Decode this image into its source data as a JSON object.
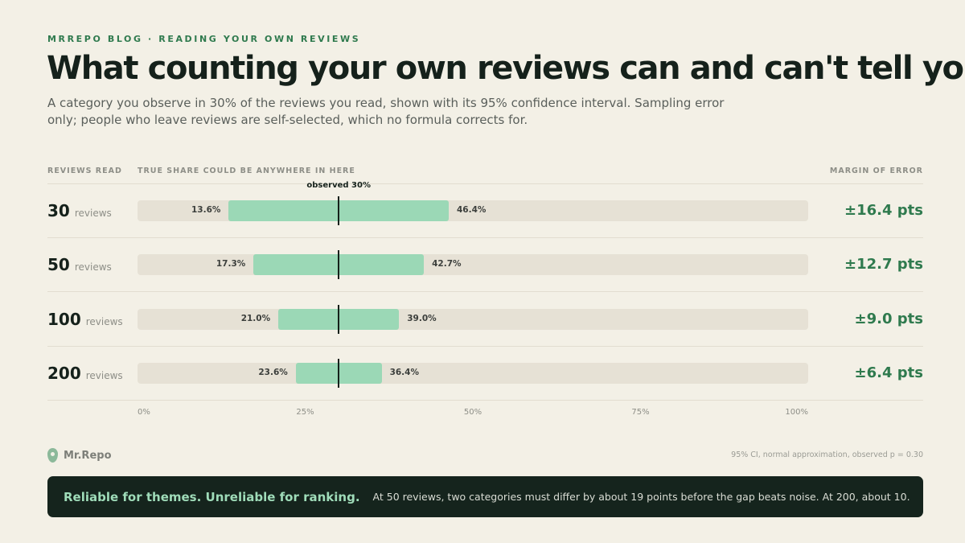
{
  "header": {
    "eyebrow": "MRREPO BLOG · READING YOUR OWN REVIEWS",
    "title": "What counting your own reviews can and can't tell you",
    "subtitle": "A category you observe in 30% of the reviews you read, shown with its 95% confidence interval. Sampling error only; people who leave reviews are self-selected, which no formula corrects for."
  },
  "columns": {
    "reviews_read": "REVIEWS READ",
    "range": "TRUE SHARE COULD BE ANYWHERE IN HERE",
    "margin": "MARGIN OF ERROR"
  },
  "chart_data": {
    "type": "bar",
    "subtype": "interval",
    "observed_label": "observed 30%",
    "observed": 30,
    "xlim": [
      0,
      100
    ],
    "x_ticks": [
      "0%",
      "25%",
      "50%",
      "75%",
      "100%"
    ],
    "unit_label": "reviews",
    "rows": [
      {
        "n": "30",
        "low": 13.6,
        "high": 46.4,
        "low_label": "13.6%",
        "high_label": "46.4%",
        "moe_label": "±16.4 pts"
      },
      {
        "n": "50",
        "low": 17.3,
        "high": 42.7,
        "low_label": "17.3%",
        "high_label": "42.7%",
        "moe_label": "±12.7 pts"
      },
      {
        "n": "100",
        "low": 21.0,
        "high": 39.0,
        "low_label": "21.0%",
        "high_label": "39.0%",
        "moe_label": "±9.0 pts"
      },
      {
        "n": "200",
        "low": 23.6,
        "high": 36.4,
        "low_label": "23.6%",
        "high_label": "36.4%",
        "moe_label": "±6.4 pts"
      }
    ]
  },
  "footer": {
    "brand": "Mr.Repo",
    "brand_icon": "location-pin-icon",
    "note": "95% CI, normal approximation, observed p = 0.30"
  },
  "callout": {
    "headline": "Reliable for themes. Unreliable for ranking.",
    "body": "At 50 reviews, two categories must differ by about 19 points before the gap beats noise. At 200, about 10."
  },
  "colors": {
    "background": "#f3f0e6",
    "accent": "#2f7a4e",
    "interval": "#9bd8b6",
    "track": "#e6e1d5",
    "callout_bg": "#15241d"
  }
}
